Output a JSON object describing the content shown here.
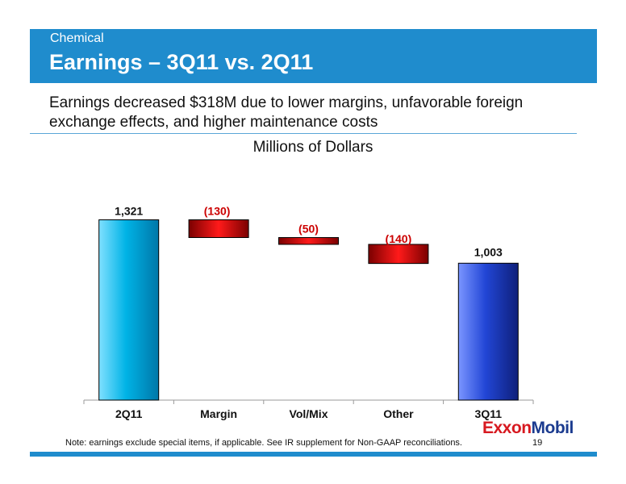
{
  "header": {
    "section": "Chemical",
    "title": "Earnings – 3Q11 vs. 2Q11"
  },
  "subtitle": "Earnings decreased $318M due to lower margins, unfavorable foreign exchange effects, and higher maintenance costs",
  "units": "Millions of Dollars",
  "chart_data": {
    "type": "waterfall",
    "categories": [
      "2Q11",
      "Margin",
      "Vol/Mix",
      "Other",
      "3Q11"
    ],
    "values": [
      1321,
      -130,
      -50,
      -140,
      1003
    ],
    "value_labels": [
      "1,321",
      "(130)",
      "(50)",
      "(140)",
      "1,003"
    ],
    "kinds": [
      "total",
      "delta",
      "delta",
      "delta",
      "total"
    ],
    "ylim": [
      0,
      1500
    ],
    "grid": false,
    "colors": {
      "start_total": "#00b3e6",
      "decrease": "#cc0000",
      "end_total": "#1f3fbf",
      "negative_label": "#cc0000",
      "positive_label": "#111111"
    }
  },
  "logo": {
    "ex_part": "Exxon",
    "mobil_part": "Mobil"
  },
  "footnote": "Note: earnings exclude special items, if applicable. See IR supplement for Non-GAAP reconciliations.",
  "page_number": "19"
}
